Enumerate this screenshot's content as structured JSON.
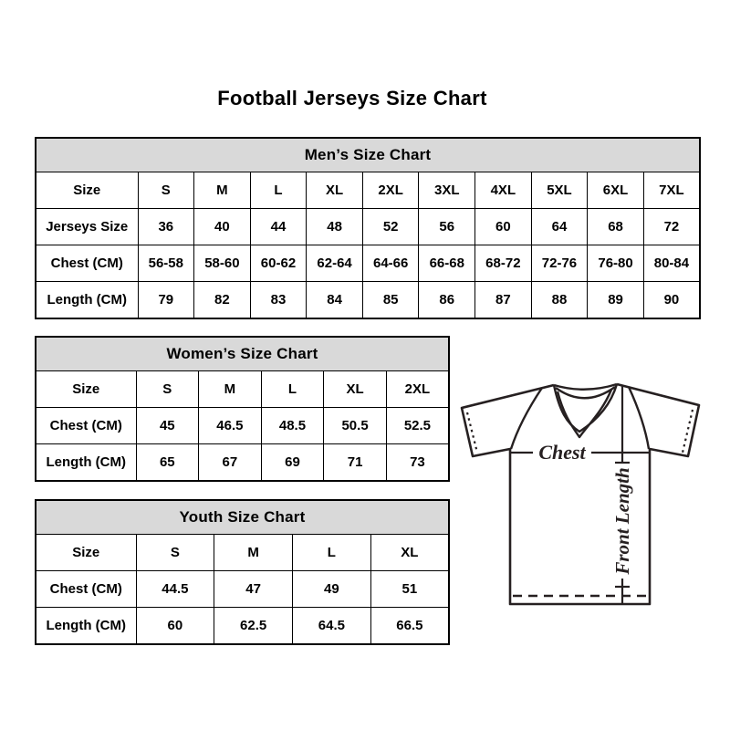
{
  "title": "Football Jerseys Size Chart",
  "colors": {
    "header_bg": "#d9d9d9",
    "border": "#000000",
    "line": "#262021",
    "text": "#000000"
  },
  "diagram": {
    "chest_label": "Chest",
    "front_length_label": "Front Length"
  },
  "chart_data": [
    {
      "type": "table",
      "id": "men",
      "title": "Men’s Size Chart",
      "rows": [
        {
          "label": "Size",
          "values": [
            "S",
            "M",
            "L",
            "XL",
            "2XL",
            "3XL",
            "4XL",
            "5XL",
            "6XL",
            "7XL"
          ]
        },
        {
          "label": "Jerseys Size",
          "values": [
            "36",
            "40",
            "44",
            "48",
            "52",
            "56",
            "60",
            "64",
            "68",
            "72"
          ]
        },
        {
          "label": "Chest (CM)",
          "values": [
            "56-58",
            "58-60",
            "60-62",
            "62-64",
            "64-66",
            "66-68",
            "68-72",
            "72-76",
            "76-80",
            "80-84"
          ]
        },
        {
          "label": "Length (CM)",
          "values": [
            "79",
            "82",
            "83",
            "84",
            "85",
            "86",
            "87",
            "88",
            "89",
            "90"
          ]
        }
      ]
    },
    {
      "type": "table",
      "id": "women",
      "title": "Women’s Size Chart",
      "rows": [
        {
          "label": "Size",
          "values": [
            "S",
            "M",
            "L",
            "XL",
            "2XL"
          ]
        },
        {
          "label": "Chest (CM)",
          "values": [
            "45",
            "46.5",
            "48.5",
            "50.5",
            "52.5"
          ]
        },
        {
          "label": "Length (CM)",
          "values": [
            "65",
            "67",
            "69",
            "71",
            "73"
          ]
        }
      ]
    },
    {
      "type": "table",
      "id": "youth",
      "title": "Youth Size Chart",
      "rows": [
        {
          "label": "Size",
          "values": [
            "S",
            "M",
            "L",
            "XL"
          ]
        },
        {
          "label": "Chest (CM)",
          "values": [
            "44.5",
            "47",
            "49",
            "51"
          ]
        },
        {
          "label": "Length (CM)",
          "values": [
            "60",
            "62.5",
            "64.5",
            "66.5"
          ]
        }
      ]
    }
  ]
}
